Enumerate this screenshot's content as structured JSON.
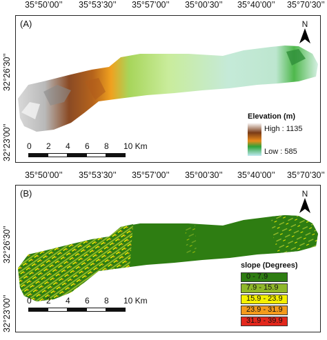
{
  "top_axis_labels": [
    "35°50’00’’",
    "35°53’30’’",
    "35°57’00’’",
    "35°00’30’’",
    "35°40’00’’",
    "35°70’30’’"
  ],
  "left_axis_labels": [
    "32°26’30’’",
    "32°23’00’’"
  ],
  "panel_a": {
    "label": "(A)",
    "north": "N",
    "legend_title": "Elevation (m)",
    "legend_high": "High : 1135",
    "legend_low": "Low : 585",
    "colors": {
      "high": "#ffffff",
      "brown": "#7a3b17",
      "orange": "#e98b1c",
      "green": "#2fa23a",
      "low": "#bfe9f2"
    }
  },
  "panel_b": {
    "label": "(B)",
    "north": "N",
    "legend_title": "slope (Degrees)",
    "classes": [
      {
        "label": "0 - 7.9",
        "color": "#2e7d12"
      },
      {
        "label": "7.9 - 15.9",
        "color": "#8fb82a"
      },
      {
        "label": "15.9 - 23.9",
        "color": "#f4f000"
      },
      {
        "label": "23.9 - 31.9",
        "color": "#f39a1c"
      },
      {
        "label": "31.9 - 39.9",
        "color": "#e3271c"
      }
    ]
  },
  "scale_bar": {
    "ticks": [
      "0",
      "2",
      "4",
      "6",
      "8",
      "10 Km"
    ]
  }
}
